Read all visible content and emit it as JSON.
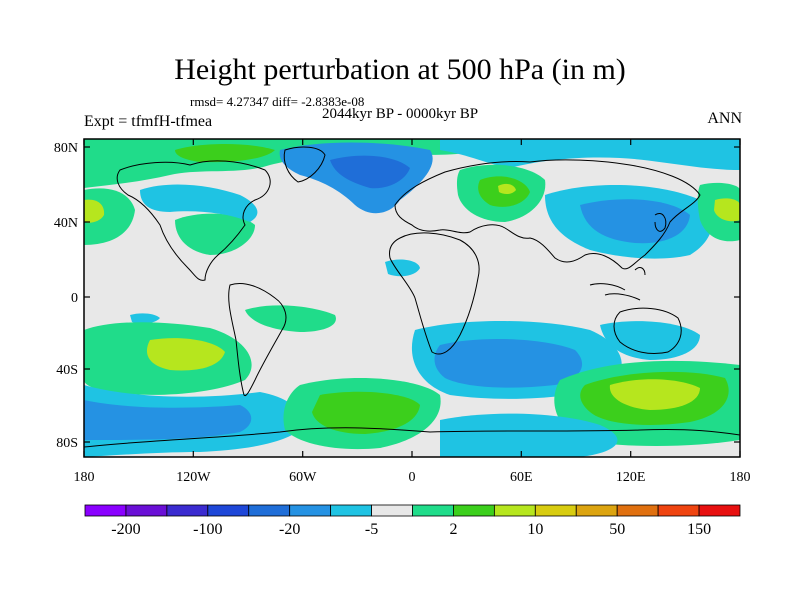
{
  "title": "Height perturbation at 500 hPa (in m)",
  "stats": "rmsd= 4.27347 diff= -2.8383e-08",
  "experiment": "Expt = tfmfH-tfmea",
  "period": "2044kyr BP - 0000kyr BP",
  "season": "ANN",
  "map": {
    "lat_ticks": [
      "80N",
      "40N",
      "0",
      "40S",
      "80S"
    ],
    "lon_ticks": [
      "180",
      "120W",
      "60W",
      "0",
      "60E",
      "120E",
      "180"
    ],
    "background_color": "#e8e8e8"
  },
  "colorbar": {
    "colors": [
      "#8a00ff",
      "#6a0fd6",
      "#3b2bd0",
      "#1e47d8",
      "#1f6ed8",
      "#2592e3",
      "#1fc3e3",
      "#e8e8e8",
      "#20dc8a",
      "#3ccf1c",
      "#b6e61e",
      "#d8cc10",
      "#dca410",
      "#e0700f",
      "#ef4410",
      "#e81010"
    ],
    "labels": [
      "-200",
      "-100",
      "-20",
      "-5",
      "2",
      "10",
      "50",
      "150"
    ]
  }
}
